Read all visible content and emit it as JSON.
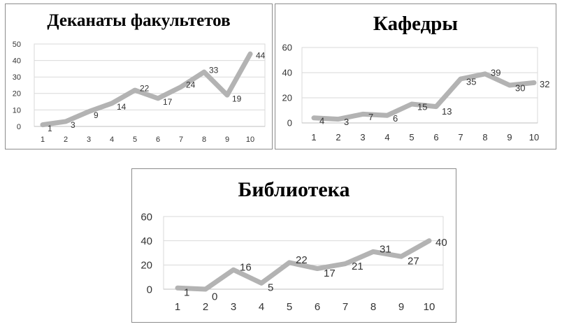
{
  "chart_data": [
    {
      "type": "line",
      "title": "Деканаты факультетов",
      "x": [
        1,
        2,
        3,
        4,
        5,
        6,
        7,
        8,
        9,
        10
      ],
      "series": [
        {
          "values": [
            1,
            3,
            9,
            14,
            22,
            17,
            24,
            33,
            19,
            44
          ]
        }
      ],
      "ylim": [
        0,
        50
      ],
      "yticks": [
        0,
        10,
        20,
        30,
        40,
        50
      ],
      "grid": true,
      "legend": "none",
      "line_color": "#b3b3b3",
      "grid_color": "#d9d9d9"
    },
    {
      "type": "line",
      "title": "Кафедры",
      "x": [
        1,
        2,
        3,
        4,
        5,
        6,
        7,
        8,
        9,
        10
      ],
      "series": [
        {
          "values": [
            4,
            3,
            7,
            6,
            15,
            13,
            35,
            39,
            30,
            32
          ]
        }
      ],
      "ylim": [
        0,
        60
      ],
      "yticks": [
        0,
        20,
        40,
        60
      ],
      "grid": true,
      "legend": "none",
      "line_color": "#b3b3b3",
      "grid_color": "#d9d9d9"
    },
    {
      "type": "line",
      "title": "Библиотека",
      "x": [
        1,
        2,
        3,
        4,
        5,
        6,
        7,
        8,
        9,
        10
      ],
      "series": [
        {
          "values": [
            1,
            0,
            16,
            5,
            22,
            17,
            21,
            31,
            27,
            40
          ]
        }
      ],
      "ylim": [
        0,
        60
      ],
      "yticks": [
        0,
        20,
        40,
        60
      ],
      "grid": true,
      "legend": "none",
      "line_color": "#b3b3b3",
      "grid_color": "#d9d9d9"
    }
  ]
}
